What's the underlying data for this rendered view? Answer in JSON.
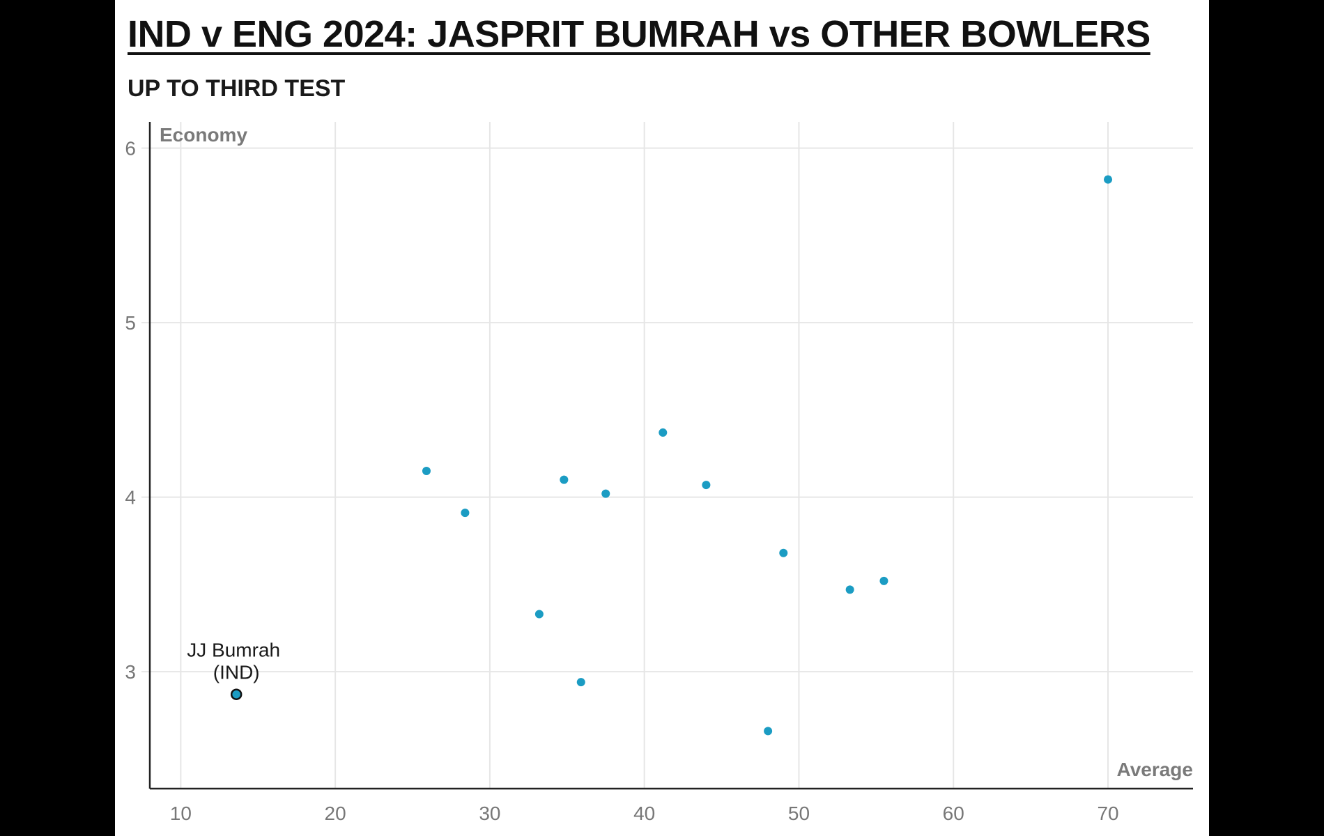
{
  "chart_data": {
    "type": "scatter",
    "title": "IND v ENG 2024: JASPRIT BUMRAH vs OTHER BOWLERS",
    "subtitle": "UP TO THIRD TEST",
    "xlabel": "Average",
    "ylabel": "Economy",
    "xlim": [
      8,
      75.5
    ],
    "ylim": [
      2.33,
      6.15
    ],
    "x_ticks": [
      10,
      20,
      30,
      40,
      50,
      60,
      70
    ],
    "y_ticks": [
      3,
      4,
      5,
      6
    ],
    "grid": true,
    "point_color": "#1b9cc3",
    "highlight_color": "#1b9cc3",
    "highlight_stroke": "#111111",
    "points": [
      {
        "x": 13.6,
        "y": 2.87,
        "label": "JJ Bumrah",
        "sublabel": "(IND)",
        "highlight": true
      },
      {
        "x": 25.9,
        "y": 4.15
      },
      {
        "x": 28.4,
        "y": 3.91
      },
      {
        "x": 33.2,
        "y": 3.33
      },
      {
        "x": 34.8,
        "y": 4.1
      },
      {
        "x": 35.9,
        "y": 2.94
      },
      {
        "x": 37.5,
        "y": 4.02
      },
      {
        "x": 41.2,
        "y": 4.37
      },
      {
        "x": 44.0,
        "y": 4.07
      },
      {
        "x": 48.0,
        "y": 2.66
      },
      {
        "x": 49.0,
        "y": 3.68
      },
      {
        "x": 53.3,
        "y": 3.47
      },
      {
        "x": 55.5,
        "y": 3.52
      },
      {
        "x": 70.0,
        "y": 5.82
      }
    ]
  }
}
